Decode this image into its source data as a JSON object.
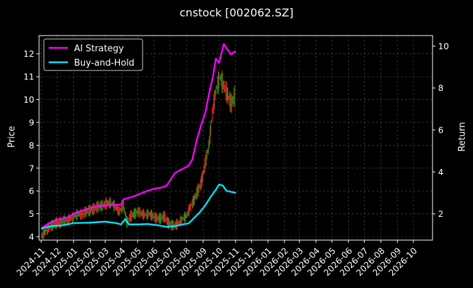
{
  "chart_data": {
    "type": "line",
    "title": "cnstock [002062.SZ]",
    "ylabel_left": "Price",
    "ylabel_right": "Return",
    "x_tick_labels": [
      "2024-11",
      "2024-12",
      "2025-01",
      "2025-02",
      "2025-03",
      "2025-04",
      "2025-05",
      "2025-06",
      "2025-07",
      "2025-08",
      "2025-09",
      "2025-10",
      "2025-11",
      "2025-12",
      "2026-01",
      "2026-02",
      "2026-03",
      "2026-04",
      "2026-05",
      "2026-06",
      "2026-07",
      "2026-08",
      "2026-09",
      "2026-10"
    ],
    "y_left_ticks": [
      4,
      5,
      6,
      7,
      8,
      9,
      10,
      11,
      12
    ],
    "y_right_ticks": [
      2,
      4,
      6,
      8,
      10
    ],
    "ylim_left": [
      3.85,
      12.8
    ],
    "ylim_right": [
      0.75,
      10.5
    ],
    "xlim": [
      "2024-10-28",
      "2026-11-06"
    ],
    "grid": true,
    "legend_position": "top-left",
    "legend": [
      {
        "label": "AI Strategy",
        "color": "#ff00ff"
      },
      {
        "label": "Buy-and-Hold",
        "color": "#00e5ff"
      }
    ],
    "price_series": {
      "name": "",
      "up_color": "#ff2020",
      "down_color": "#1a9a1a",
      "points": [
        [
          "2024-11-01",
          4.0
        ],
        [
          "2024-11-08",
          4.2
        ],
        [
          "2024-11-15",
          4.4
        ],
        [
          "2024-11-22",
          4.5
        ],
        [
          "2024-11-29",
          4.6
        ],
        [
          "2024-12-06",
          4.6
        ],
        [
          "2024-12-13",
          4.7
        ],
        [
          "2024-12-20",
          4.7
        ],
        [
          "2024-12-27",
          4.8
        ],
        [
          "2025-01-03",
          4.9
        ],
        [
          "2025-01-10",
          5.0
        ],
        [
          "2025-01-17",
          4.95
        ],
        [
          "2025-01-24",
          5.1
        ],
        [
          "2025-01-31",
          5.15
        ],
        [
          "2025-02-07",
          5.2
        ],
        [
          "2025-02-14",
          5.3
        ],
        [
          "2025-02-21",
          5.35
        ],
        [
          "2025-02-28",
          5.4
        ],
        [
          "2025-03-07",
          5.5
        ],
        [
          "2025-03-14",
          5.45
        ],
        [
          "2025-03-21",
          5.3
        ],
        [
          "2025-03-28",
          5.1
        ],
        [
          "2025-04-04",
          5.4
        ],
        [
          "2025-04-11",
          4.6
        ],
        [
          "2025-04-18",
          4.9
        ],
        [
          "2025-04-25",
          5.0
        ],
        [
          "2025-05-02",
          5.1
        ],
        [
          "2025-05-09",
          5.0
        ],
        [
          "2025-05-16",
          4.95
        ],
        [
          "2025-05-23",
          5.0
        ],
        [
          "2025-05-30",
          4.9
        ],
        [
          "2025-06-06",
          4.8
        ],
        [
          "2025-06-13",
          4.8
        ],
        [
          "2025-06-20",
          4.9
        ],
        [
          "2025-06-27",
          4.6
        ],
        [
          "2025-07-04",
          4.5
        ],
        [
          "2025-07-11",
          4.5
        ],
        [
          "2025-07-18",
          4.6
        ],
        [
          "2025-07-25",
          4.8
        ],
        [
          "2025-08-01",
          4.9
        ],
        [
          "2025-08-08",
          5.3
        ],
        [
          "2025-08-15",
          5.6
        ],
        [
          "2025-08-22",
          6.0
        ],
        [
          "2025-08-29",
          6.4
        ],
        [
          "2025-09-05",
          7.2
        ],
        [
          "2025-09-12",
          8.0
        ],
        [
          "2025-09-19",
          9.5
        ],
        [
          "2025-09-26",
          10.5
        ],
        [
          "2025-10-03",
          11.0
        ],
        [
          "2025-10-10",
          10.6
        ],
        [
          "2025-10-17",
          10.2
        ],
        [
          "2025-10-24",
          9.8
        ],
        [
          "2025-10-31",
          10.2
        ]
      ]
    },
    "series": [
      {
        "name": "AI Strategy",
        "color": "#ff00ff",
        "axis": "right",
        "points": [
          [
            "2024-11-01",
            1.3
          ],
          [
            "2024-11-15",
            1.55
          ],
          [
            "2024-12-01",
            1.72
          ],
          [
            "2024-12-20",
            1.82
          ],
          [
            "2025-01-05",
            2.05
          ],
          [
            "2025-01-20",
            2.18
          ],
          [
            "2025-02-10",
            2.35
          ],
          [
            "2025-02-25",
            2.38
          ],
          [
            "2025-03-15",
            2.43
          ],
          [
            "2025-03-31",
            2.45
          ],
          [
            "2025-04-05",
            2.7
          ],
          [
            "2025-04-20",
            2.8
          ],
          [
            "2025-05-05",
            2.95
          ],
          [
            "2025-05-20",
            3.1
          ],
          [
            "2025-06-01",
            3.2
          ],
          [
            "2025-06-15",
            3.25
          ],
          [
            "2025-06-25",
            3.35
          ],
          [
            "2025-07-01",
            3.6
          ],
          [
            "2025-07-10",
            3.95
          ],
          [
            "2025-07-25",
            4.15
          ],
          [
            "2025-08-05",
            4.3
          ],
          [
            "2025-08-12",
            4.6
          ],
          [
            "2025-08-20",
            5.5
          ],
          [
            "2025-08-28",
            6.2
          ],
          [
            "2025-09-05",
            6.8
          ],
          [
            "2025-09-12",
            7.7
          ],
          [
            "2025-09-20",
            8.6
          ],
          [
            "2025-09-25",
            9.4
          ],
          [
            "2025-10-01",
            9.2
          ],
          [
            "2025-10-06",
            9.7
          ],
          [
            "2025-10-10",
            10.1
          ],
          [
            "2025-10-16",
            9.85
          ],
          [
            "2025-10-24",
            9.6
          ],
          [
            "2025-10-28",
            9.7
          ],
          [
            "2025-11-02",
            9.75
          ]
        ]
      },
      {
        "name": "Buy-and-Hold",
        "color": "#00e5ff",
        "axis": "right",
        "points": [
          [
            "2024-11-01",
            1.3
          ],
          [
            "2024-11-20",
            1.42
          ],
          [
            "2024-12-10",
            1.45
          ],
          [
            "2025-01-01",
            1.56
          ],
          [
            "2025-02-01",
            1.58
          ],
          [
            "2025-03-01",
            1.63
          ],
          [
            "2025-03-20",
            1.57
          ],
          [
            "2025-03-31",
            1.5
          ],
          [
            "2025-04-08",
            1.75
          ],
          [
            "2025-04-15",
            1.5
          ],
          [
            "2025-05-01",
            1.5
          ],
          [
            "2025-05-20",
            1.52
          ],
          [
            "2025-06-10",
            1.45
          ],
          [
            "2025-06-25",
            1.38
          ],
          [
            "2025-07-10",
            1.42
          ],
          [
            "2025-07-25",
            1.5
          ],
          [
            "2025-08-05",
            1.55
          ],
          [
            "2025-08-15",
            1.8
          ],
          [
            "2025-08-25",
            2.05
          ],
          [
            "2025-09-05",
            2.4
          ],
          [
            "2025-09-15",
            2.8
          ],
          [
            "2025-09-25",
            3.15
          ],
          [
            "2025-10-01",
            3.4
          ],
          [
            "2025-10-08",
            3.35
          ],
          [
            "2025-10-15",
            3.1
          ],
          [
            "2025-10-24",
            3.05
          ],
          [
            "2025-11-02",
            3.0
          ]
        ]
      }
    ]
  }
}
